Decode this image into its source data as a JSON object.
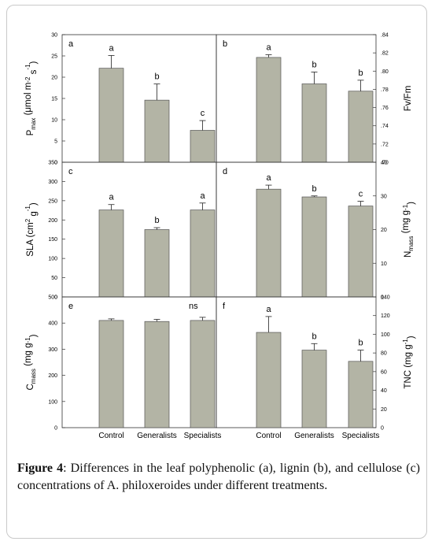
{
  "caption": {
    "label": "Figure 4",
    "text": ": Differences in the leaf polyphenolic (a), lignin (b), and cellulose (c) concentrations of A. philoxeroides under different treatments."
  },
  "colors": {
    "bar": "#b3b4a5",
    "axis": "#333333"
  },
  "chart_data": [
    {
      "id": "a",
      "type": "bar",
      "side": "left",
      "ylabel": {
        "main": "P",
        "sub": "max",
        "rest": " (μmol m",
        "sup1": "-2",
        "mid": " s",
        "sup2": "-1",
        "end": ")"
      },
      "ylim": [
        0,
        30
      ],
      "ticks": [
        0,
        5,
        10,
        15,
        20,
        25,
        30
      ],
      "categories": [
        "Control",
        "Generalists",
        "Specialists"
      ],
      "values": [
        22.1,
        14.6,
        7.5
      ],
      "errors": [
        3.0,
        3.8,
        2.3
      ],
      "letters": [
        "a",
        "b",
        "c"
      ]
    },
    {
      "id": "b",
      "type": "bar",
      "side": "right",
      "ylabel": {
        "main": "Fv/Fm"
      },
      "ylim": [
        0.7,
        0.84
      ],
      "ticks": [
        0.7,
        0.72,
        0.74,
        0.76,
        0.78,
        0.8,
        0.82,
        0.84
      ],
      "tick_labels": [
        ".70",
        ".72",
        ".74",
        ".76",
        ".78",
        ".80",
        ".82",
        ".84"
      ],
      "categories": [
        "Control",
        "Generalists",
        "Specialists"
      ],
      "values": [
        0.815,
        0.786,
        0.778
      ],
      "errors": [
        0.003,
        0.013,
        0.012
      ],
      "letters": [
        "a",
        "b",
        "b"
      ]
    },
    {
      "id": "c",
      "type": "bar",
      "side": "left",
      "ylabel": {
        "main": "SLA (cm",
        "sup1": "2",
        "mid": " g",
        "sup2": "-1",
        "end": ")"
      },
      "ylim": [
        0,
        350
      ],
      "ticks": [
        0,
        50,
        100,
        150,
        200,
        250,
        300,
        350
      ],
      "categories": [
        "Control",
        "Generalists",
        "Specialists"
      ],
      "values": [
        226,
        175,
        226
      ],
      "errors": [
        14,
        5,
        18
      ],
      "letters": [
        "a",
        "b",
        "a"
      ]
    },
    {
      "id": "d",
      "type": "bar",
      "side": "right",
      "ylabel": {
        "main": "N",
        "sub": "mass",
        "rest": " (mg g",
        "sup1": "-1",
        "end": ")"
      },
      "ylim": [
        0,
        40
      ],
      "ticks": [
        0,
        10,
        20,
        30,
        40
      ],
      "categories": [
        "Control",
        "Generalists",
        "Specialists"
      ],
      "values": [
        32.0,
        29.7,
        27.0
      ],
      "errors": [
        1.2,
        0.3,
        1.4
      ],
      "letters": [
        "a",
        "b",
        "c"
      ]
    },
    {
      "id": "e",
      "type": "bar",
      "side": "left",
      "ylabel": {
        "main": "C",
        "sub": "mass",
        "rest": " (mg g",
        "sup1": "-1",
        "end": ")"
      },
      "ylim": [
        0,
        500
      ],
      "ticks": [
        0,
        100,
        200,
        300,
        400,
        500
      ],
      "categories": [
        "Control",
        "Generalists",
        "Specialists"
      ],
      "values": [
        410,
        406,
        410
      ],
      "errors": [
        6,
        8,
        12
      ],
      "letters": [
        "",
        "",
        ""
      ],
      "note": "ns"
    },
    {
      "id": "f",
      "type": "bar",
      "side": "right",
      "ylabel": {
        "main": "TNC (mg g",
        "sup1": "-1",
        "end": ")"
      },
      "ylim": [
        0,
        140
      ],
      "ticks": [
        0,
        20,
        40,
        60,
        80,
        100,
        120,
        140
      ],
      "categories": [
        "Control",
        "Generalists",
        "Specialists"
      ],
      "values": [
        102,
        83,
        71
      ],
      "errors": [
        17,
        7,
        12
      ],
      "letters": [
        "a",
        "b",
        "b"
      ]
    }
  ]
}
